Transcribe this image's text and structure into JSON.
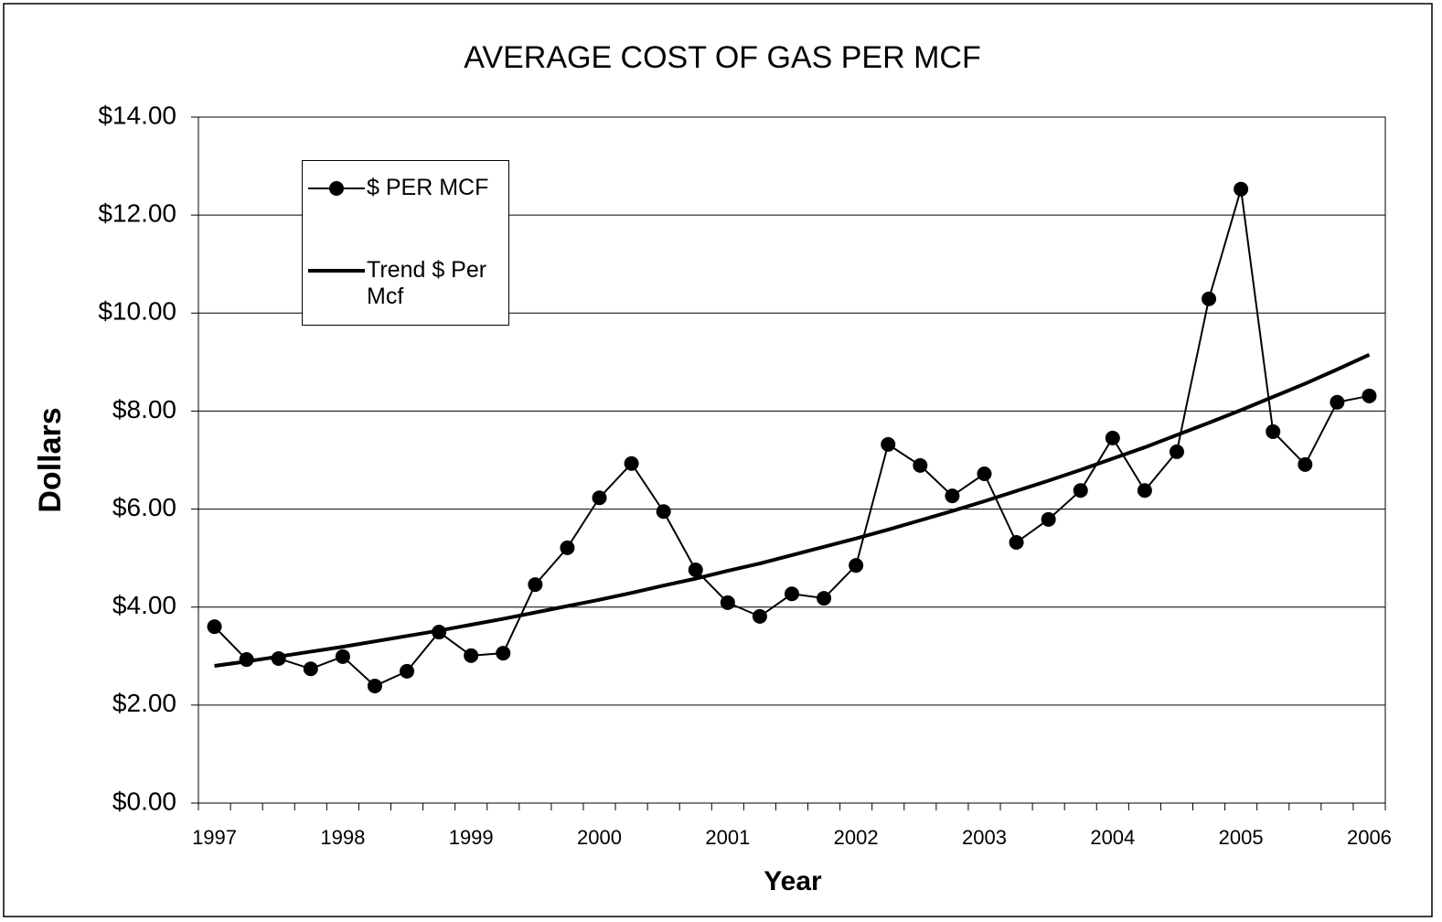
{
  "chart_data": {
    "type": "line",
    "title": "AVERAGE COST OF GAS PER MCF",
    "x_label": "Year",
    "y_label": "Dollars",
    "categories": [
      "1997",
      null,
      null,
      null,
      "1998",
      null,
      null,
      null,
      "1999",
      null,
      null,
      null,
      "2000",
      null,
      null,
      null,
      "2001",
      null,
      null,
      null,
      "2002",
      null,
      null,
      null,
      "2003",
      null,
      null,
      null,
      "2004",
      null,
      null,
      null,
      "2005",
      null,
      null,
      null,
      "2006"
    ],
    "series": [
      {
        "name": "$ PER MCF",
        "color": "#000000",
        "marker": "circle",
        "values": [
          3.6,
          2.93,
          2.95,
          2.74,
          2.99,
          2.39,
          2.69,
          3.49,
          3.01,
          3.06,
          4.46,
          5.21,
          6.23,
          6.93,
          5.95,
          4.76,
          4.09,
          3.81,
          4.27,
          4.18,
          4.85,
          7.32,
          6.89,
          6.27,
          6.72,
          5.32,
          5.79,
          6.38,
          7.45,
          6.38,
          7.17,
          10.29,
          12.53,
          7.58,
          6.91,
          8.18,
          8.31
        ]
      },
      {
        "name": "Trend $ Per Mcf",
        "color": "#000000",
        "marker": "none",
        "values": [
          2.8,
          2.89,
          2.99,
          3.09,
          3.19,
          3.3,
          3.41,
          3.52,
          3.64,
          3.76,
          3.89,
          4.02,
          4.15,
          4.29,
          4.44,
          4.58,
          4.74,
          4.89,
          5.06,
          5.23,
          5.4,
          5.58,
          5.77,
          5.96,
          6.16,
          6.37,
          6.58,
          6.8,
          7.03,
          7.26,
          7.51,
          7.76,
          8.02,
          8.29,
          8.56,
          8.85,
          9.15
        ]
      }
    ],
    "ylim": [
      0,
      14
    ],
    "yticks": [
      {
        "value": 0,
        "label": "$0.00"
      },
      {
        "value": 2,
        "label": "$2.00"
      },
      {
        "value": 4,
        "label": "$4.00"
      },
      {
        "value": 6,
        "label": "$6.00"
      },
      {
        "value": 8,
        "label": "$8.00"
      },
      {
        "value": 10,
        "label": "$10.00"
      },
      {
        "value": 12,
        "label": "$12.00"
      },
      {
        "value": 14,
        "label": "$14.00"
      }
    ],
    "grid": true,
    "legend": "upper left"
  }
}
